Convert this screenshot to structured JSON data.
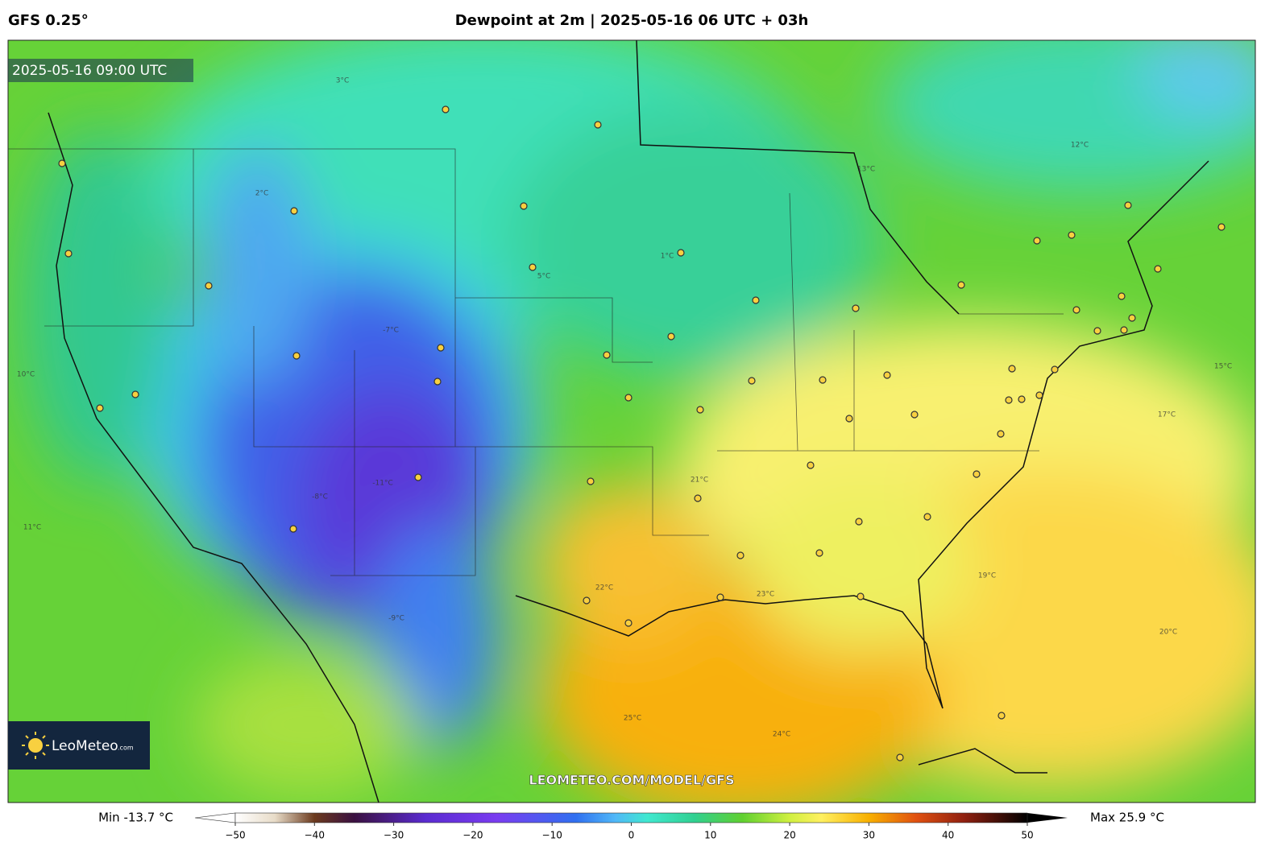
{
  "header": {
    "model": "GFS 0.25°",
    "title": "Dewpoint at 2m | 2025-05-16 06 UTC + 03h"
  },
  "map": {
    "valid_time": "2025-05-16 09:00 UTC",
    "logo": {
      "name": "LeoMeteo",
      "suffix": ".com"
    },
    "watermark": "LEOMETEO.COM/MODEL/GFS",
    "contour_labels": [
      "3°C",
      "2°C",
      "12°C",
      "11°C",
      "13°C",
      "5°C",
      "1°C",
      "-7°C",
      "-9°C",
      "-11°C",
      "-8°C",
      "10°C",
      "19°C",
      "21°C",
      "22°C",
      "23°C",
      "24°C",
      "25°C",
      "17°C",
      "20°C",
      "15°C"
    ]
  },
  "colorbar": {
    "min_label": "Min -13.7 °C",
    "max_label": "Max 25.9 °C",
    "range": [
      -50,
      50
    ],
    "ticks": [
      {
        "value": -50,
        "label": "−50"
      },
      {
        "value": -40,
        "label": "−40"
      },
      {
        "value": -30,
        "label": "−30"
      },
      {
        "value": -20,
        "label": "−20"
      },
      {
        "value": -10,
        "label": "−10"
      },
      0,
      10,
      20,
      30,
      40,
      50
    ]
  }
}
